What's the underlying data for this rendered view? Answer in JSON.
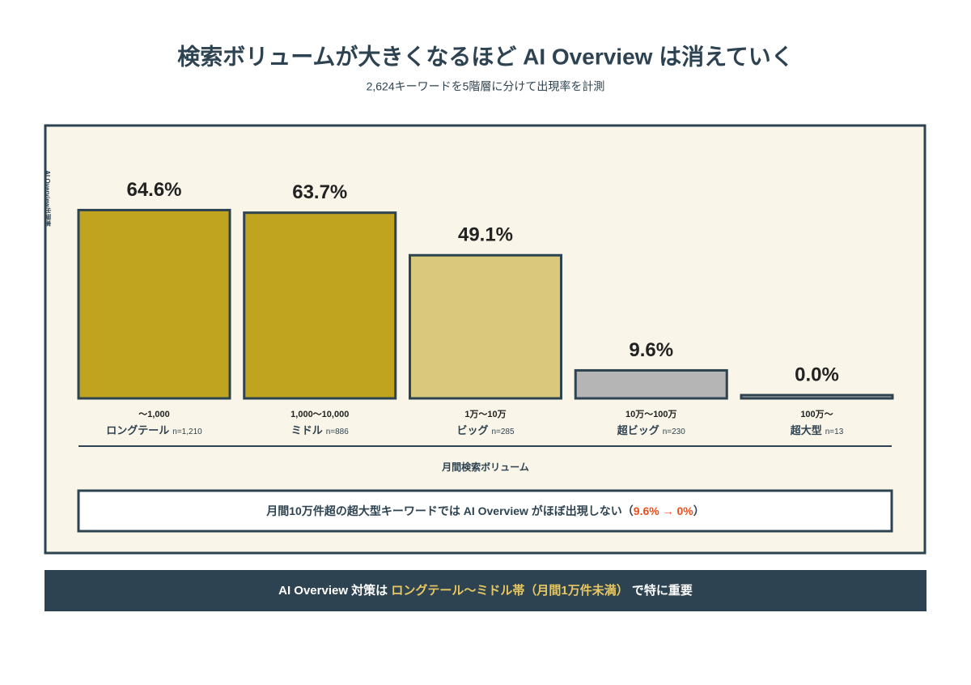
{
  "chart_data": {
    "type": "bar",
    "title": "検索ボリュームが大きくなるほど AI Overview は消えていく",
    "subtitle": "2,624キーワードを5階層に分けて出現率を計測",
    "y_label": "AI Overview出現率",
    "x_label": "月間検索ボリューム",
    "categories": [
      "〜1,000",
      "1,000〜10,000",
      "1万〜10万",
      "10万〜100万",
      "100万〜"
    ],
    "tier_names": [
      "ロングテール",
      "ミドル",
      "ビッグ",
      "超ビッグ",
      "超大型"
    ],
    "sample_sizes": [
      "n=1,210",
      "n=886",
      "n=285",
      "n=230",
      "n=13"
    ],
    "values": [
      64.6,
      63.7,
      49.1,
      9.6,
      0.0
    ],
    "value_labels": [
      "64.6%",
      "63.7%",
      "49.1%",
      "9.6%",
      "0.0%"
    ],
    "colors": [
      "#c0a420",
      "#c0a420",
      "#dac87c",
      "#b5b5b5",
      "#b5b5b5"
    ],
    "ylim": [
      0,
      75
    ],
    "annotation": {
      "before": "月間10万件超の超大型キーワードでは AI Overview がほぼ出現しない（",
      "highlight": "9.6% → 0%",
      "after": "）"
    },
    "footer": {
      "before": "AI Overview 対策は ",
      "highlight": "ロングテール〜ミドル帯（月間1万件未満）",
      "after": " で特に重要"
    }
  }
}
